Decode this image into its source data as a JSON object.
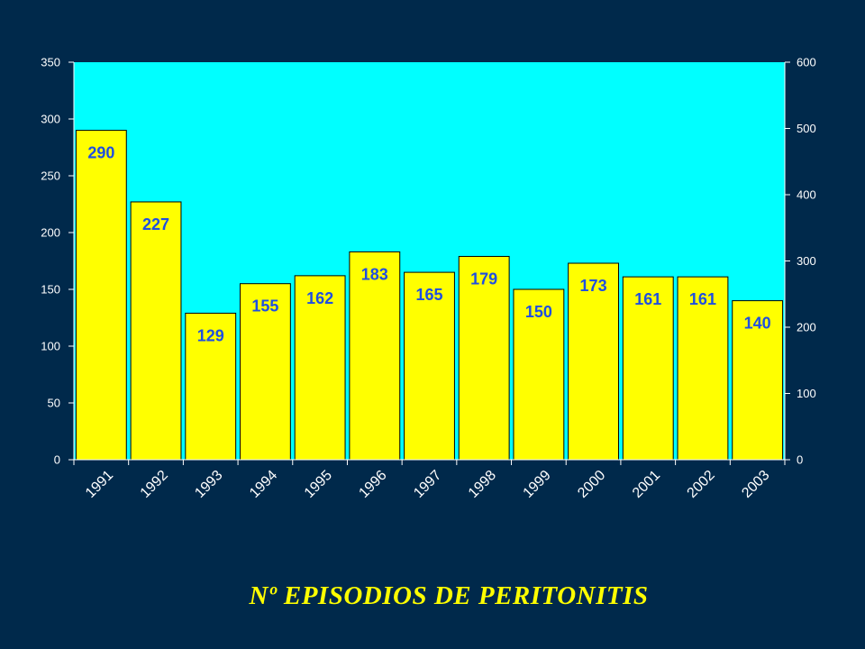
{
  "slide_title": "Nº EPISODIOS DE PERITONITIS",
  "colors": {
    "background": "#00294B",
    "plot_area": "#00FFFF",
    "bar_fill": "#FFFF00",
    "bar_stroke": "#000000",
    "data_label": "#1F4FE0",
    "title": "#FFFF00",
    "axis_text": "#FFFFFF"
  },
  "chart_data": {
    "type": "bar",
    "title": "",
    "xlabel": "",
    "ylabel": "",
    "categories": [
      "1991",
      "1992",
      "1993",
      "1994",
      "1995",
      "1996",
      "1997",
      "1998",
      "1999",
      "2000",
      "2001",
      "2002",
      "2003"
    ],
    "values": [
      290,
      227,
      129,
      155,
      162,
      183,
      165,
      179,
      150,
      173,
      161,
      161,
      140
    ],
    "ylim": [
      0,
      350
    ],
    "yticks": [
      0,
      50,
      100,
      150,
      200,
      250,
      300,
      350
    ],
    "y2lim": [
      0,
      600
    ],
    "y2ticks": [
      0,
      100,
      200,
      300,
      400,
      500,
      600
    ],
    "grid": false,
    "legend": "none",
    "data_labels": true
  }
}
